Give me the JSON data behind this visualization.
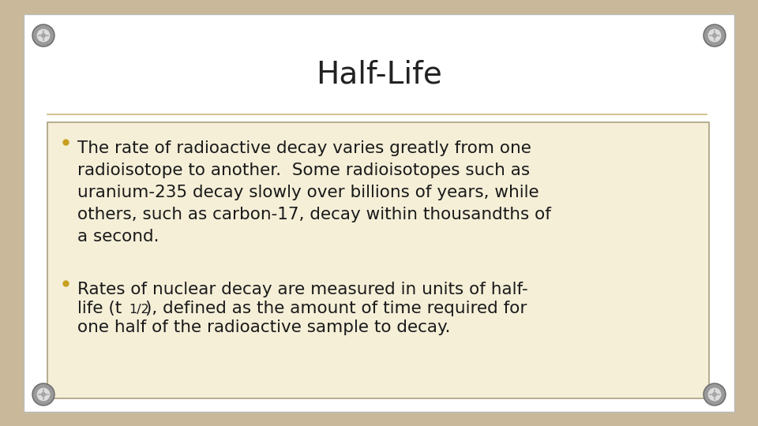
{
  "title": "Half-Life",
  "title_fontsize": 28,
  "title_color": "#222222",
  "bg_outer": "#c9b99a",
  "bg_slide": "#ffffff",
  "content_box_bg": "#f5efd8",
  "content_box_border": "#aaa080",
  "divider_color": "#c8b878",
  "bullet_color": "#c8a020",
  "text_color": "#1a1a1a",
  "text_fontsize": 15.5,
  "bullet1": "The rate of radioactive decay varies greatly from one\nradioisotope to another.  Some radioisotopes such as\nuranium-235 decay slowly over billions of years, while\nothers, such as carbon-17, decay within thousandths of\na second.",
  "line2_pre": "life (t",
  "line2_sub": "1/2",
  "line2_post": "), defined as the amount of time required for",
  "line1_b2": "Rates of nuclear decay are measured in units of half-",
  "line3_b2": "one half of the radioactive sample to decay.",
  "screw_outer": "#999999",
  "screw_inner": "#dddddd",
  "screw_dark": "#666666"
}
